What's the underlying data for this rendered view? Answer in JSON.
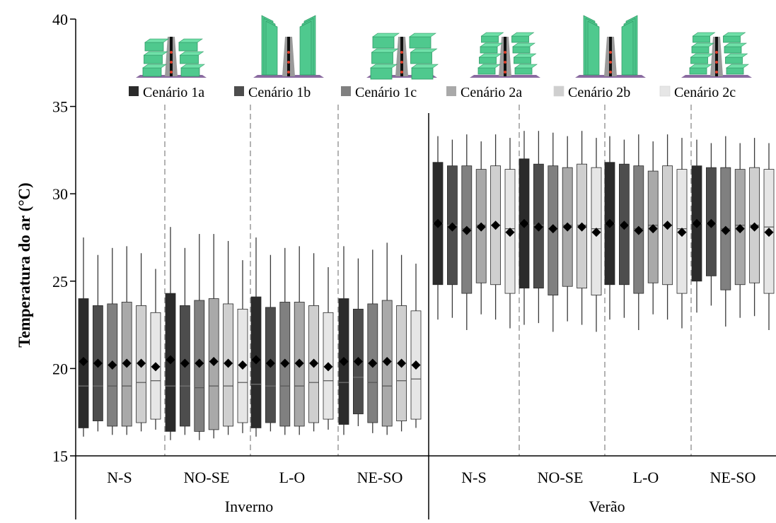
{
  "chart_data": {
    "type": "box",
    "ylabel": "Temperatura do ar (°C)",
    "xlabel": "",
    "ylim": [
      15,
      40
    ],
    "yticks": [
      15,
      20,
      25,
      30,
      35,
      40
    ],
    "grid": false,
    "legend_position": "top",
    "series": [
      {
        "name": "Cenário 1a",
        "color": "#2b2b2b"
      },
      {
        "name": "Cenário 1b",
        "color": "#4d4d4d"
      },
      {
        "name": "Cenário 1c",
        "color": "#808080"
      },
      {
        "name": "Cenário 2a",
        "color": "#a9a9a9"
      },
      {
        "name": "Cenário 2b",
        "color": "#cfcfcf"
      },
      {
        "name": "Cenário 2c",
        "color": "#e6e6e6"
      }
    ],
    "seasons": [
      {
        "label": "Inverno",
        "groups": [
          {
            "label": "N-S",
            "boxes": [
              {
                "q1": 16.6,
                "median": 19.0,
                "q3": 24.0,
                "whisker_low": 16.1,
                "whisker_high": 27.5,
                "mean": 20.4
              },
              {
                "q1": 17.0,
                "median": 19.0,
                "q3": 23.6,
                "whisker_low": 16.4,
                "whisker_high": 26.5,
                "mean": 20.3
              },
              {
                "q1": 16.7,
                "median": 19.0,
                "q3": 23.7,
                "whisker_low": 16.2,
                "whisker_high": 26.9,
                "mean": 20.2
              },
              {
                "q1": 16.7,
                "median": 19.0,
                "q3": 23.8,
                "whisker_low": 16.2,
                "whisker_high": 27.0,
                "mean": 20.3
              },
              {
                "q1": 16.9,
                "median": 19.2,
                "q3": 23.6,
                "whisker_low": 16.4,
                "whisker_high": 26.6,
                "mean": 20.3
              },
              {
                "q1": 17.1,
                "median": 19.3,
                "q3": 23.2,
                "whisker_low": 16.5,
                "whisker_high": 25.7,
                "mean": 20.1
              }
            ]
          },
          {
            "label": "NO-SE",
            "boxes": [
              {
                "q1": 16.4,
                "median": 19.0,
                "q3": 24.3,
                "whisker_low": 15.9,
                "whisker_high": 28.1,
                "mean": 20.5
              },
              {
                "q1": 16.7,
                "median": 19.0,
                "q3": 23.6,
                "whisker_low": 16.2,
                "whisker_high": 26.9,
                "mean": 20.3
              },
              {
                "q1": 16.4,
                "median": 18.9,
                "q3": 23.9,
                "whisker_low": 15.9,
                "whisker_high": 27.7,
                "mean": 20.3
              },
              {
                "q1": 16.5,
                "median": 19.0,
                "q3": 24.0,
                "whisker_low": 16.0,
                "whisker_high": 27.7,
                "mean": 20.4
              },
              {
                "q1": 16.7,
                "median": 19.0,
                "q3": 23.7,
                "whisker_low": 16.2,
                "whisker_high": 27.3,
                "mean": 20.3
              },
              {
                "q1": 16.9,
                "median": 19.2,
                "q3": 23.4,
                "whisker_low": 16.3,
                "whisker_high": 26.2,
                "mean": 20.2
              }
            ]
          },
          {
            "label": "L-O",
            "boxes": [
              {
                "q1": 16.6,
                "median": 19.1,
                "q3": 24.1,
                "whisker_low": 16.1,
                "whisker_high": 27.5,
                "mean": 20.5
              },
              {
                "q1": 16.9,
                "median": 19.0,
                "q3": 23.5,
                "whisker_low": 16.4,
                "whisker_high": 26.5,
                "mean": 20.3
              },
              {
                "q1": 16.7,
                "median": 19.0,
                "q3": 23.8,
                "whisker_low": 16.2,
                "whisker_high": 26.9,
                "mean": 20.3
              },
              {
                "q1": 16.7,
                "median": 19.0,
                "q3": 23.8,
                "whisker_low": 16.2,
                "whisker_high": 27.0,
                "mean": 20.3
              },
              {
                "q1": 16.9,
                "median": 19.2,
                "q3": 23.6,
                "whisker_low": 16.4,
                "whisker_high": 26.6,
                "mean": 20.3
              },
              {
                "q1": 17.1,
                "median": 19.3,
                "q3": 23.2,
                "whisker_low": 16.5,
                "whisker_high": 25.8,
                "mean": 20.1
              }
            ]
          },
          {
            "label": "NE-SO",
            "boxes": [
              {
                "q1": 16.8,
                "median": 19.2,
                "q3": 24.0,
                "whisker_low": 16.2,
                "whisker_high": 27.0,
                "mean": 20.4
              },
              {
                "q1": 17.4,
                "median": 19.5,
                "q3": 23.4,
                "whisker_low": 16.7,
                "whisker_high": 26.3,
                "mean": 20.4
              },
              {
                "q1": 16.9,
                "median": 19.2,
                "q3": 23.7,
                "whisker_low": 16.3,
                "whisker_high": 26.8,
                "mean": 20.3
              },
              {
                "q1": 16.7,
                "median": 19.0,
                "q3": 23.9,
                "whisker_low": 16.2,
                "whisker_high": 27.2,
                "mean": 20.4
              },
              {
                "q1": 17.0,
                "median": 19.3,
                "q3": 23.6,
                "whisker_low": 16.4,
                "whisker_high": 26.5,
                "mean": 20.3
              },
              {
                "q1": 17.1,
                "median": 19.4,
                "q3": 23.3,
                "whisker_low": 16.6,
                "whisker_high": 26.0,
                "mean": 20.2
              }
            ]
          }
        ]
      },
      {
        "label": "Verão",
        "groups": [
          {
            "label": "N-S",
            "boxes": [
              {
                "q1": 24.8,
                "median": 28.3,
                "q3": 31.8,
                "whisker_low": 22.8,
                "whisker_high": 33.3,
                "mean": 28.3
              },
              {
                "q1": 24.8,
                "median": 28.2,
                "q3": 31.6,
                "whisker_low": 22.9,
                "whisker_high": 33.1,
                "mean": 28.1
              },
              {
                "q1": 24.3,
                "median": 28.0,
                "q3": 31.6,
                "whisker_low": 22.2,
                "whisker_high": 33.4,
                "mean": 27.9
              },
              {
                "q1": 24.9,
                "median": 28.2,
                "q3": 31.4,
                "whisker_low": 23.1,
                "whisker_high": 33.0,
                "mean": 28.1
              },
              {
                "q1": 24.8,
                "median": 28.2,
                "q3": 31.6,
                "whisker_low": 22.8,
                "whisker_high": 33.4,
                "mean": 28.2
              },
              {
                "q1": 24.3,
                "median": 28.0,
                "q3": 31.4,
                "whisker_low": 22.3,
                "whisker_high": 33.2,
                "mean": 27.8
              }
            ]
          },
          {
            "label": "NO-SE",
            "boxes": [
              {
                "q1": 24.6,
                "median": 28.3,
                "q3": 32.0,
                "whisker_low": 22.5,
                "whisker_high": 33.6,
                "mean": 28.3
              },
              {
                "q1": 24.6,
                "median": 28.2,
                "q3": 31.7,
                "whisker_low": 22.6,
                "whisker_high": 33.6,
                "mean": 28.1
              },
              {
                "q1": 24.2,
                "median": 28.0,
                "q3": 31.6,
                "whisker_low": 22.1,
                "whisker_high": 33.5,
                "mean": 28.0
              },
              {
                "q1": 24.7,
                "median": 28.2,
                "q3": 31.5,
                "whisker_low": 22.7,
                "whisker_high": 33.3,
                "mean": 28.1
              },
              {
                "q1": 24.6,
                "median": 28.2,
                "q3": 31.7,
                "whisker_low": 22.5,
                "whisker_high": 33.6,
                "mean": 28.1
              },
              {
                "q1": 24.2,
                "median": 28.0,
                "q3": 31.5,
                "whisker_low": 22.1,
                "whisker_high": 33.2,
                "mean": 27.8
              }
            ]
          },
          {
            "label": "L-O",
            "boxes": [
              {
                "q1": 24.8,
                "median": 28.3,
                "q3": 31.8,
                "whisker_low": 22.8,
                "whisker_high": 33.3,
                "mean": 28.3
              },
              {
                "q1": 24.8,
                "median": 28.2,
                "q3": 31.7,
                "whisker_low": 22.9,
                "whisker_high": 33.1,
                "mean": 28.2
              },
              {
                "q1": 24.3,
                "median": 28.0,
                "q3": 31.6,
                "whisker_low": 22.2,
                "whisker_high": 33.4,
                "mean": 27.9
              },
              {
                "q1": 24.9,
                "median": 28.2,
                "q3": 31.3,
                "whisker_low": 23.1,
                "whisker_high": 33.0,
                "mean": 28.0
              },
              {
                "q1": 24.8,
                "median": 28.2,
                "q3": 31.6,
                "whisker_low": 22.8,
                "whisker_high": 33.4,
                "mean": 28.2
              },
              {
                "q1": 24.3,
                "median": 28.0,
                "q3": 31.4,
                "whisker_low": 22.3,
                "whisker_high": 33.2,
                "mean": 27.8
              }
            ]
          },
          {
            "label": "NE-SO",
            "boxes": [
              {
                "q1": 25.0,
                "median": 28.3,
                "q3": 31.6,
                "whisker_low": 23.2,
                "whisker_high": 33.1,
                "mean": 28.3
              },
              {
                "q1": 25.3,
                "median": 28.3,
                "q3": 31.5,
                "whisker_low": 23.6,
                "whisker_high": 32.9,
                "mean": 28.3
              },
              {
                "q1": 24.5,
                "median": 28.0,
                "q3": 31.5,
                "whisker_low": 22.4,
                "whisker_high": 33.3,
                "mean": 27.9
              },
              {
                "q1": 24.8,
                "median": 28.2,
                "q3": 31.4,
                "whisker_low": 22.9,
                "whisker_high": 32.9,
                "mean": 28.0
              },
              {
                "q1": 24.9,
                "median": 28.2,
                "q3": 31.5,
                "whisker_low": 23.0,
                "whisker_high": 33.2,
                "mean": 28.1
              },
              {
                "q1": 24.3,
                "median": 28.1,
                "q3": 31.4,
                "whisker_low": 22.2,
                "whisker_high": 32.9,
                "mean": 27.8
              }
            ]
          }
        ]
      }
    ],
    "scenario_icons": [
      {
        "series": "Cenário 1a",
        "icon": "canyon-medium-blocks-icon"
      },
      {
        "series": "Cenário 1b",
        "icon": "canyon-tall-walls-icon"
      },
      {
        "series": "Cenário 1c",
        "icon": "canyon-wide-blocks-icon"
      },
      {
        "series": "Cenário 2a",
        "icon": "canyon-stepped-low-icon"
      },
      {
        "series": "Cenário 2b",
        "icon": "canyon-tall-stepped-icon"
      },
      {
        "series": "Cenário 2c",
        "icon": "canyon-stepped-wide-icon"
      }
    ],
    "colors": {
      "building_green": "#4fc98e",
      "building_green_dark": "#2f9a66",
      "street": "#9a9a9a",
      "street_line": "#111111",
      "street_marker": "#e0402b",
      "ground": "#8a6aa0",
      "mean_marker": "#000000",
      "divider": "#8a8a8a"
    }
  }
}
